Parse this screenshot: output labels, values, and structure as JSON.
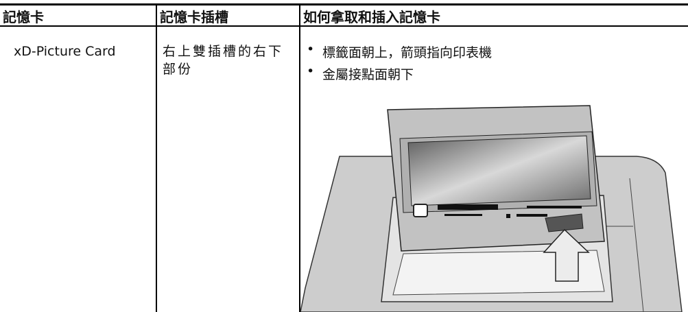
{
  "table": {
    "header": [
      "記憶卡",
      "記憶卡插槽",
      "如何拿取和插入記憶卡"
    ],
    "rows": [
      [
        "xD-Picture Card",
        "右上雙插槽的右下部份",
        [
          "標籤面朝上，箭頭指向印表機",
          "金屬接點面朝下"
        ]
      ]
    ]
  }
}
